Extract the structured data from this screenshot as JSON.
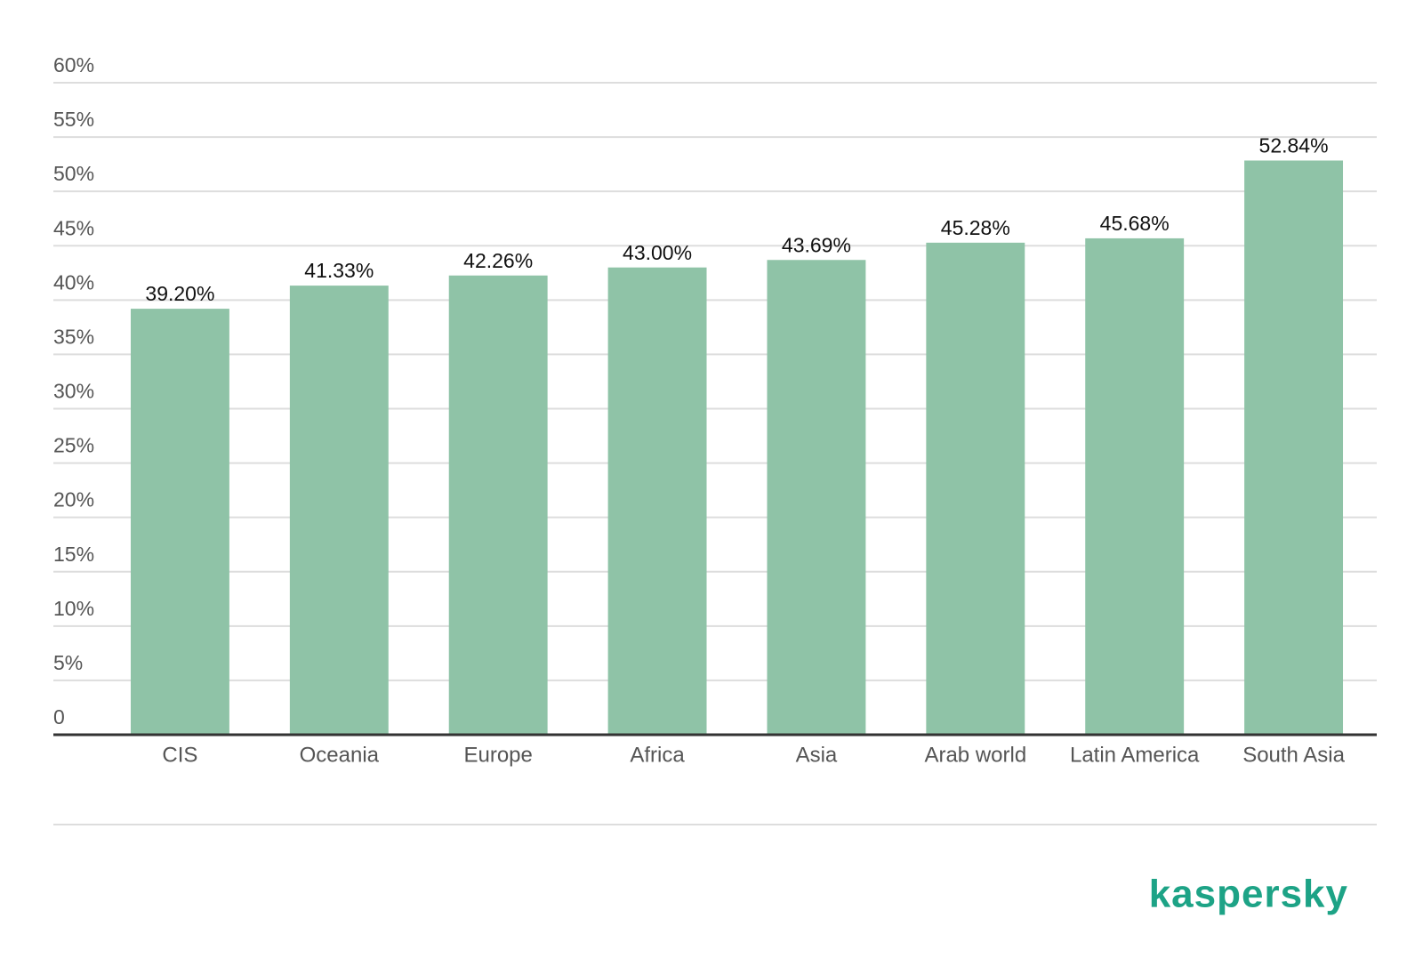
{
  "chart_data": {
    "type": "bar",
    "categories": [
      "CIS",
      "Oceania",
      "Europe",
      "Africa",
      "Asia",
      "Arab world",
      "Latin America",
      "South Asia"
    ],
    "values": [
      39.2,
      41.33,
      42.26,
      43.0,
      43.69,
      45.28,
      45.68,
      52.84
    ],
    "value_labels": [
      "39.20%",
      "41.33%",
      "42.26%",
      "43.00%",
      "43.69%",
      "45.28%",
      "45.68%",
      "52.84%"
    ],
    "color": "#8fc3a7",
    "ylim": [
      0,
      60
    ],
    "yticks": [
      0,
      {
        "value": 5,
        "label": "5%"
      },
      {
        "value": 10,
        "label": "10%"
      },
      {
        "value": 15,
        "label": "15%"
      },
      {
        "value": 20,
        "label": "20%"
      },
      {
        "value": 25,
        "label": "25%"
      },
      {
        "value": 30,
        "label": "30%"
      },
      {
        "value": 35,
        "label": "35%"
      },
      {
        "value": 40,
        "label": "40%"
      },
      {
        "value": 45,
        "label": "45%"
      },
      {
        "value": 50,
        "label": "50%"
      },
      {
        "value": 55,
        "label": "55%"
      },
      {
        "value": 60,
        "label": "60%"
      }
    ],
    "grid": true,
    "logo_text": "kaspersky",
    "logo_color": "#1da386"
  }
}
